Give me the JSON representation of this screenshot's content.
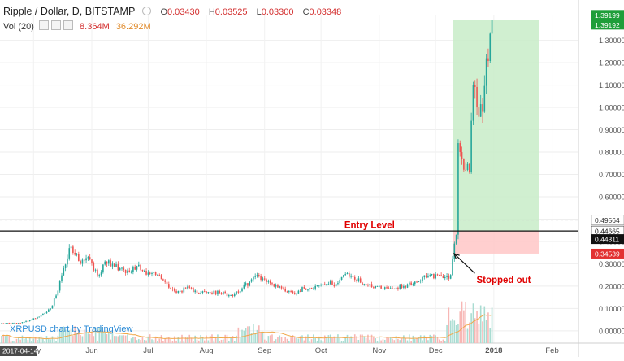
{
  "header": {
    "title": "Ripple / Dollar, D, BITSTAMP",
    "ohlc": [
      {
        "label": "O",
        "value": "0.03430"
      },
      {
        "label": "H",
        "value": "0.03525"
      },
      {
        "label": "L",
        "value": "0.03300"
      },
      {
        "label": "C",
        "value": "0.03348"
      }
    ],
    "volume_label": "Vol (20)",
    "volume_value": "8.364M",
    "volume_ma": "36.292M"
  },
  "watermark": "XRPUSD chart by TradingView",
  "colors": {
    "up": "#26a69a",
    "down": "#ef5350",
    "target_zone": "#c8ecc8",
    "stop_zone": "#ffcaca",
    "target_label": "#1e9e3a",
    "stop_label": "#e23131",
    "entry_label": "#111111",
    "annotation": "#e00000"
  },
  "chart_data": {
    "type": "candlestick",
    "symbol": "XRPUSD",
    "exchange": "BITSTAMP",
    "interval": "D",
    "title": "Ripple / Dollar, D, BITSTAMP",
    "x_axis": {
      "start_label": "2017-04-14",
      "tick_labels": [
        "May",
        "Jun",
        "Jul",
        "Aug",
        "Sep",
        "Oct",
        "Nov",
        "Dec",
        "2018",
        "Feb"
      ],
      "tick_dates": [
        "2017-05-01",
        "2017-06-01",
        "2017-07-01",
        "2017-08-01",
        "2017-09-01",
        "2017-10-01",
        "2017-11-01",
        "2017-12-01",
        "2018-01-01",
        "2018-02-01"
      ]
    },
    "y_axis": {
      "range": [
        -0.055,
        1.415
      ],
      "tick_values": [
        0.0,
        0.1,
        0.2,
        0.3,
        0.4,
        0.5,
        0.6,
        0.7,
        0.8,
        0.9,
        1.0,
        1.1,
        1.2,
        1.3
      ],
      "tick_labels": [
        "0.00000",
        "0.10000",
        "0.20000",
        "0.30000",
        "0.40000",
        "0.50000",
        "0.60000",
        "0.70000",
        "0.80000",
        "0.90000",
        "1.00000",
        "1.10000",
        "1.20000",
        "1.30000"
      ],
      "position": "right"
    },
    "price_tags": [
      {
        "value": 1.39199,
        "label": "1.39199",
        "kind": "target"
      },
      {
        "value": 1.39192,
        "label": "1.39192",
        "kind": "last"
      },
      {
        "value": 0.49564,
        "label": "0.49564",
        "kind": "plain"
      },
      {
        "value": 0.44665,
        "label": "0.44665",
        "kind": "entry"
      },
      {
        "value": 0.44311,
        "label": "0.44311",
        "kind": "current"
      },
      {
        "value": 0.34539,
        "label": "0.34539",
        "kind": "stop"
      }
    ],
    "position_tool": {
      "start_date": "2017-12-10",
      "end_date": "2018-01-25",
      "entry": 0.44665,
      "target": 1.39199,
      "stop": 0.34539
    },
    "horizontal_lines": [
      {
        "value": 0.44665
      },
      {
        "value": 0.49564,
        "style": "dashed"
      }
    ],
    "annotations": [
      {
        "text": "Entry Level",
        "date": "2017-11-01",
        "value": 0.475
      },
      {
        "text": "Stopped out",
        "date": "2017-12-21",
        "value": 0.228,
        "arrow_to_date": "2017-12-10",
        "arrow_to_value": 0.345
      }
    ],
    "waypoints": [
      [
        "2017-04-14",
        0.034
      ],
      [
        "2017-04-24",
        0.035
      ],
      [
        "2017-04-30",
        0.05
      ],
      [
        "2017-05-05",
        0.07
      ],
      [
        "2017-05-10",
        0.1
      ],
      [
        "2017-05-14",
        0.18
      ],
      [
        "2017-05-17",
        0.28
      ],
      [
        "2017-05-20",
        0.37
      ],
      [
        "2017-05-23",
        0.34
      ],
      [
        "2017-05-26",
        0.3
      ],
      [
        "2017-05-30",
        0.33
      ],
      [
        "2017-06-02",
        0.27
      ],
      [
        "2017-06-05",
        0.25
      ],
      [
        "2017-06-08",
        0.31
      ],
      [
        "2017-06-12",
        0.3
      ],
      [
        "2017-06-16",
        0.28
      ],
      [
        "2017-06-20",
        0.27
      ],
      [
        "2017-06-25",
        0.29
      ],
      [
        "2017-07-01",
        0.26
      ],
      [
        "2017-07-06",
        0.25
      ],
      [
        "2017-07-11",
        0.21
      ],
      [
        "2017-07-16",
        0.17
      ],
      [
        "2017-07-21",
        0.19
      ],
      [
        "2017-07-26",
        0.18
      ],
      [
        "2017-08-01",
        0.17
      ],
      [
        "2017-08-08",
        0.17
      ],
      [
        "2017-08-14",
        0.16
      ],
      [
        "2017-08-20",
        0.19
      ],
      [
        "2017-08-24",
        0.22
      ],
      [
        "2017-08-28",
        0.25
      ],
      [
        "2017-09-01",
        0.23
      ],
      [
        "2017-09-05",
        0.21
      ],
      [
        "2017-09-10",
        0.19
      ],
      [
        "2017-09-16",
        0.17
      ],
      [
        "2017-09-22",
        0.19
      ],
      [
        "2017-09-28",
        0.2
      ],
      [
        "2017-10-04",
        0.21
      ],
      [
        "2017-10-09",
        0.21
      ],
      [
        "2017-10-13",
        0.25
      ],
      [
        "2017-10-18",
        0.24
      ],
      [
        "2017-10-24",
        0.21
      ],
      [
        "2017-10-30",
        0.2
      ],
      [
        "2017-11-06",
        0.19
      ],
      [
        "2017-11-14",
        0.2
      ],
      [
        "2017-11-20",
        0.22
      ],
      [
        "2017-11-26",
        0.24
      ],
      [
        "2017-12-02",
        0.25
      ],
      [
        "2017-12-06",
        0.24
      ],
      [
        "2017-12-09",
        0.25
      ],
      [
        "2017-12-11",
        0.39
      ],
      [
        "2017-12-12",
        0.43
      ],
      [
        "2017-12-13",
        0.84
      ],
      [
        "2017-12-14",
        0.8
      ],
      [
        "2017-12-15",
        0.77
      ],
      [
        "2017-12-17",
        0.72
      ],
      [
        "2017-12-19",
        0.71
      ],
      [
        "2017-12-21",
        1.1
      ],
      [
        "2017-12-23",
        1.0
      ],
      [
        "2017-12-26",
        0.98
      ],
      [
        "2017-12-28",
        1.22
      ],
      [
        "2017-12-30",
        1.33
      ],
      [
        "2017-12-31",
        1.39
      ]
    ],
    "volume_panel": {
      "label": "Vol (20)",
      "value": "8.364M",
      "ma": "36.292M"
    }
  }
}
